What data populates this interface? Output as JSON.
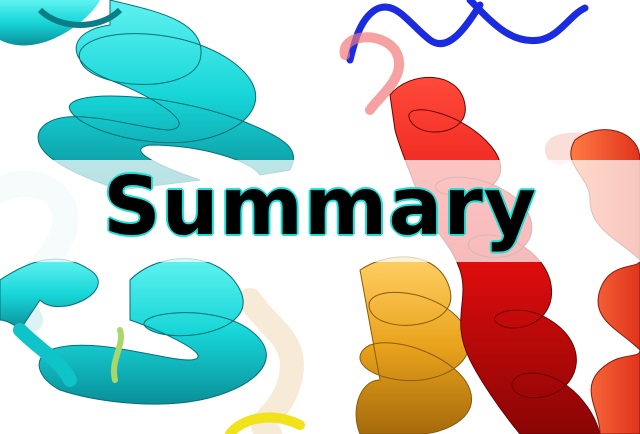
{
  "banner": {
    "title": "Summary",
    "title_color": "#000000",
    "title_outline_color": "#19e0d6"
  },
  "image": {
    "subject": "protein-ribbon-structure",
    "colors": {
      "cyan": "#14d8d8",
      "cyan_dark": "#0a9fa8",
      "red": "#e60c0c",
      "red_dark": "#a00808",
      "orange": "#e8a21a",
      "orange_dark": "#b07410",
      "blue": "#1a2be0",
      "yellow": "#f1e21a",
      "green": "#a9d86a"
    }
  }
}
